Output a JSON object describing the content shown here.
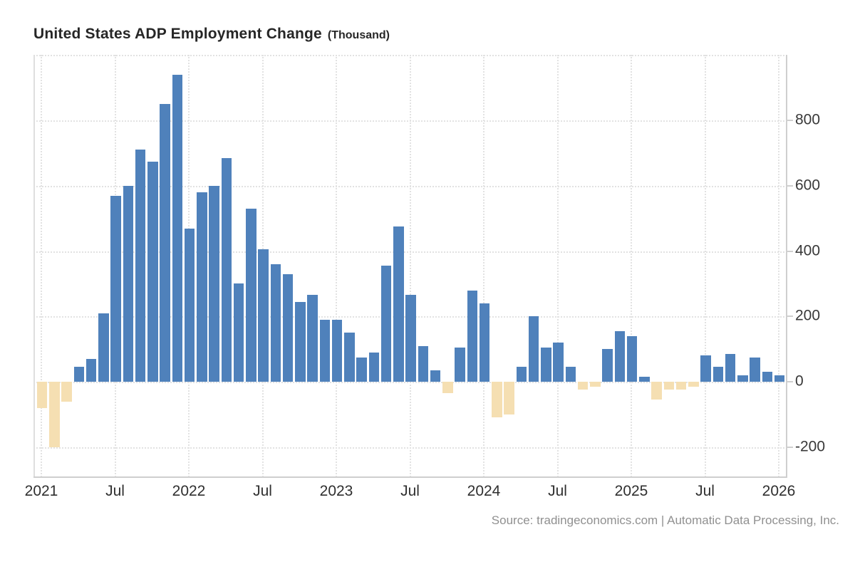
{
  "title": {
    "main": "United States ADP Employment Change",
    "suffix": "(Thousand)"
  },
  "source": "Source: tradingeconomics.com | Automatic Data Processing, Inc.",
  "colors": {
    "positive_bar": "#4f81bb",
    "negative_bar": "#f5dfb2",
    "grid": "#e2e2e2",
    "axis_line": "#cfcfcf",
    "tick_text": "#333333",
    "source_text": "#909090"
  },
  "chart_data": {
    "type": "bar",
    "title": "United States ADP Employment Change (Thousand)",
    "unit": "Thousand",
    "legend": "none",
    "grid": "dotted",
    "months": [
      "Jan 2021",
      "Feb 2021",
      "Mar 2021",
      "Apr 2021",
      "May 2021",
      "Jun 2021",
      "Jul 2021",
      "Aug 2021",
      "Sep 2021",
      "Oct 2021",
      "Nov 2021",
      "Dec 2021",
      "Jan 2022",
      "Feb 2022",
      "Mar 2022",
      "Apr 2022",
      "May 2022",
      "Jun 2022",
      "Jul 2022",
      "Aug 2022",
      "Sep 2022",
      "Oct 2022",
      "Nov 2022",
      "Dec 2022",
      "Jan 2023",
      "Feb 2023",
      "Mar 2023",
      "Apr 2023",
      "May 2023",
      "Jun 2023",
      "Jul 2023",
      "Aug 2023",
      "Sep 2023",
      "Oct 2023",
      "Nov 2023",
      "Dec 2023",
      "Jan 2024",
      "Feb 2024",
      "Mar 2024",
      "Apr 2024",
      "May 2024",
      "Jun 2024",
      "Jul 2024",
      "Aug 2024",
      "Sep 2024",
      "Oct 2024",
      "Nov 2024",
      "Dec 2024",
      "Jan 2025",
      "Feb 2025",
      "Mar 2025",
      "Apr 2025",
      "May 2025",
      "Jun 2025",
      "Jul 2025",
      "Aug 2025",
      "Sep 2025",
      "Oct 2025",
      "Nov 2025",
      "Dec 2025",
      "Jan 2026"
    ],
    "values": [
      -80,
      -200,
      -60,
      45,
      70,
      210,
      570,
      600,
      710,
      675,
      850,
      940,
      470,
      580,
      600,
      685,
      300,
      530,
      405,
      360,
      330,
      245,
      265,
      190,
      190,
      150,
      75,
      90,
      355,
      475,
      265,
      110,
      35,
      -35,
      105,
      280,
      240,
      -110,
      -100,
      45,
      200,
      105,
      120,
      45,
      -25,
      -15,
      100,
      155,
      140,
      15,
      -55,
      -25,
      -25,
      -15,
      80,
      45,
      85,
      20,
      75,
      30,
      20
    ],
    "x_axis": {
      "tick_month_indices": [
        0,
        6,
        12,
        18,
        24,
        30,
        36,
        42,
        48,
        54,
        60
      ],
      "tick_labels": [
        "2021",
        "Jul",
        "2022",
        "Jul",
        "2023",
        "Jul",
        "2024",
        "Jul",
        "2025",
        "Jul",
        "2026"
      ]
    },
    "y_axis": {
      "ticks": [
        800,
        600,
        400,
        200,
        0,
        -200
      ],
      "ylim": [
        -292,
        1000
      ],
      "side": "right"
    }
  }
}
